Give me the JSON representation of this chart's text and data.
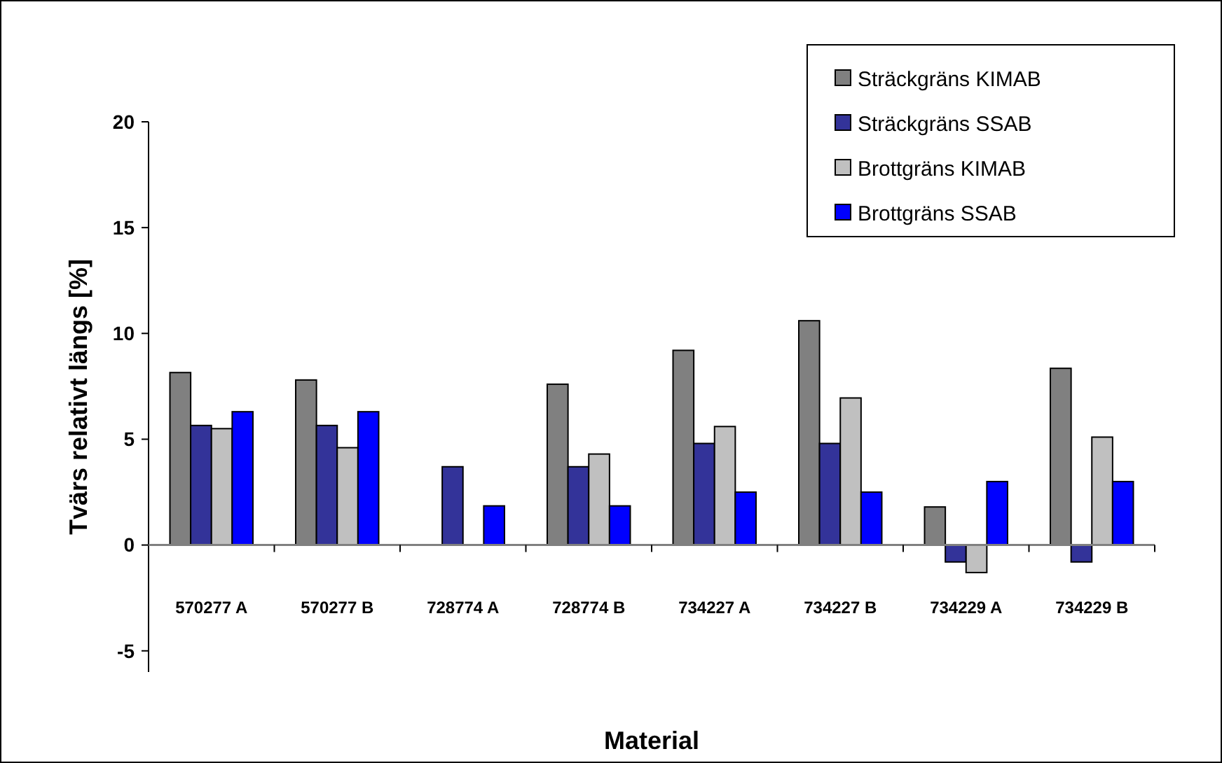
{
  "chart_data": {
    "type": "bar",
    "xlabel": "Material",
    "ylabel": "Tvärs relativt längs [%]",
    "categories": [
      "570277 A",
      "570277 B",
      "728774 A",
      "728774 B",
      "734227 A",
      "734227 B",
      "734229 A",
      "734229 B"
    ],
    "series": [
      {
        "name": "Sträckgräns KIMAB",
        "color": "#808080",
        "values": [
          8.15,
          7.8,
          null,
          7.6,
          9.2,
          10.6,
          1.8,
          8.35
        ]
      },
      {
        "name": "Sträckgräns SSAB",
        "color": "#333399",
        "values": [
          5.65,
          5.65,
          3.7,
          3.7,
          4.8,
          4.8,
          -0.8,
          -0.8
        ]
      },
      {
        "name": "Brottgräns KIMAB",
        "color": "#c0c0c0",
        "values": [
          5.5,
          4.6,
          null,
          4.3,
          5.6,
          6.95,
          -1.3,
          5.1
        ]
      },
      {
        "name": "Brottgräns SSAB",
        "color": "#0000ff",
        "values": [
          6.3,
          6.3,
          1.85,
          1.85,
          2.5,
          2.5,
          3.0,
          3.0
        ]
      }
    ],
    "ylim": [
      -6,
      20
    ],
    "yticks": [
      -5,
      0,
      5,
      10,
      15,
      20
    ],
    "legend": "top right"
  }
}
